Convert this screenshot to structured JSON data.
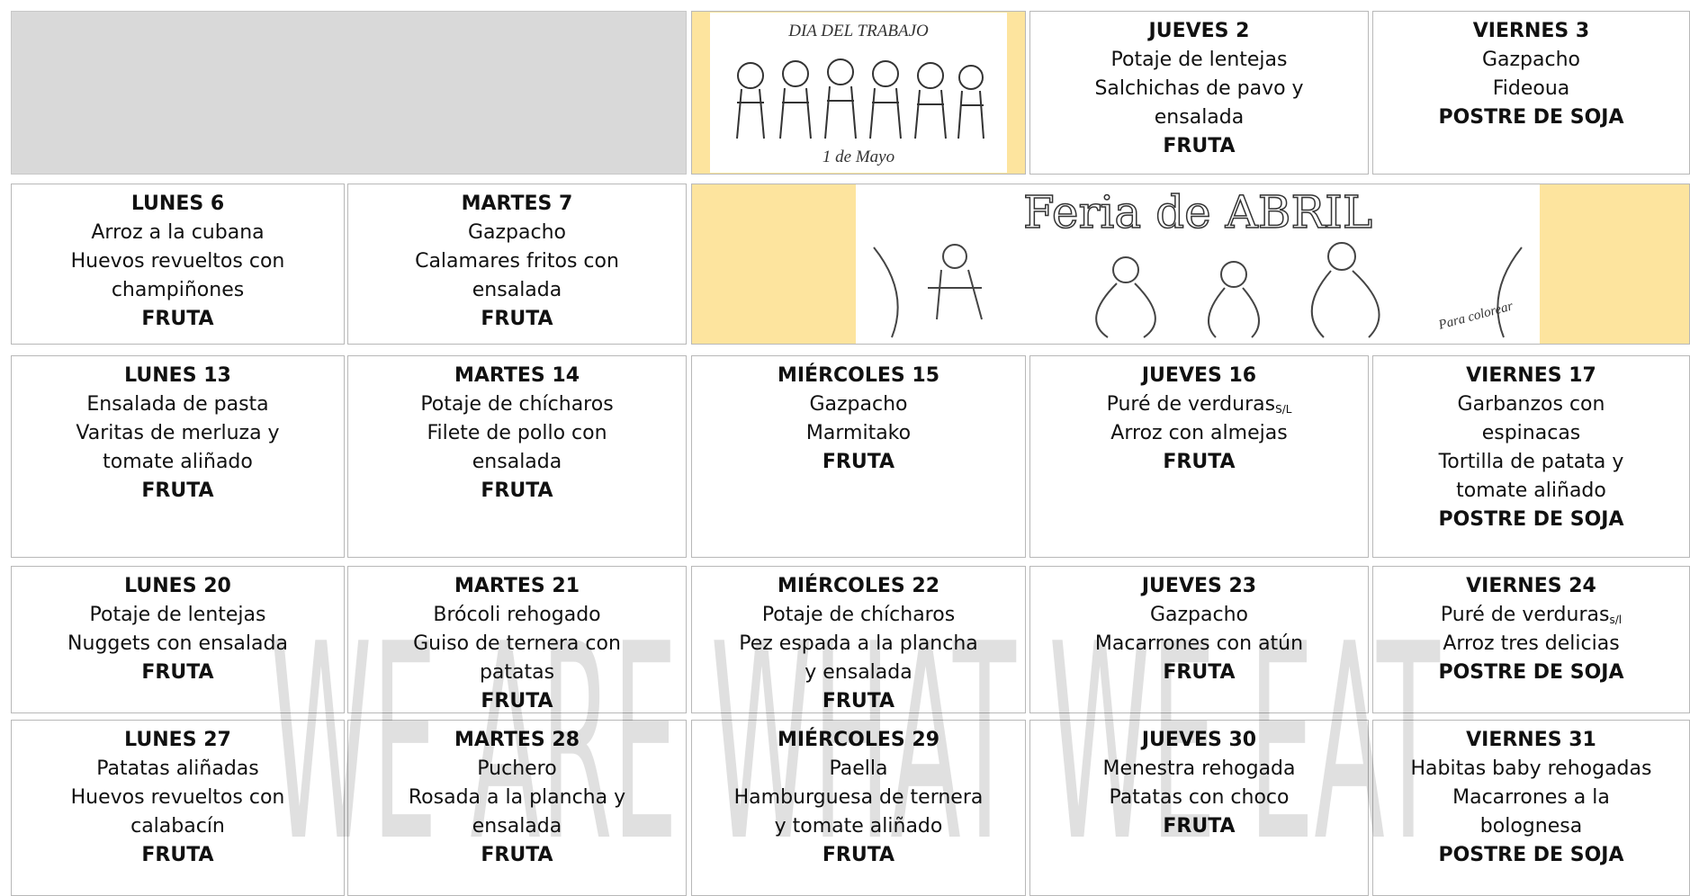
{
  "images": {
    "labour_day": {
      "title": "DIA DEL TRABAJO",
      "caption": "1 de Mayo"
    },
    "fair": {
      "title": "Feria de ABRIL",
      "caption": "Para colorear"
    }
  },
  "watermark": "WE ARE WHAT WE EAT",
  "rows": [
    [
      {
        "day": "JUEVES 2",
        "lines": [
          "Potaje de lentejas",
          "Salchichas de pavo y",
          "ensalada"
        ],
        "dessert": "FRUTA"
      },
      {
        "day": "VIERNES 3",
        "lines": [
          "Gazpacho",
          "Fideoua"
        ],
        "dessert": "POSTRE DE SOJA"
      }
    ],
    [
      {
        "day": "LUNES 6",
        "lines": [
          "Arroz a la cubana",
          "Huevos revueltos con",
          "champiñones"
        ],
        "dessert": "FRUTA"
      },
      {
        "day": "MARTES 7",
        "lines": [
          "Gazpacho",
          "Calamares fritos con",
          "ensalada"
        ],
        "dessert": "FRUTA"
      }
    ],
    [
      {
        "day": "LUNES 13",
        "lines": [
          "Ensalada de pasta",
          "Varitas de merluza y",
          "tomate aliñado"
        ],
        "dessert": "FRUTA"
      },
      {
        "day": "MARTES 14",
        "lines": [
          "Potaje de chícharos",
          "Filete de pollo con",
          "ensalada"
        ],
        "dessert": "FRUTA"
      },
      {
        "day": "MIÉRCOLES 15",
        "lines": [
          "Gazpacho",
          "Marmitako"
        ],
        "dessert": "FRUTA"
      },
      {
        "day": "JUEVES 16",
        "lines": [
          {
            "text": "Puré de verduras",
            "sub": "S/L"
          },
          "Arroz con almejas"
        ],
        "dessert": "FRUTA"
      },
      {
        "day": "VIERNES 17",
        "lines": [
          "Garbanzos con",
          "espinacas",
          "Tortilla de patata y",
          "tomate aliñado"
        ],
        "dessert": "POSTRE DE SOJA"
      }
    ],
    [
      {
        "day": "LUNES 20",
        "lines": [
          "Potaje de lentejas",
          "Nuggets con ensalada"
        ],
        "dessert": "FRUTA"
      },
      {
        "day": "MARTES 21",
        "lines": [
          "Brócoli rehogado",
          "Guiso de ternera con",
          "patatas"
        ],
        "dessert": "FRUTA"
      },
      {
        "day": "MIÉRCOLES 22",
        "lines": [
          "Potaje de chícharos",
          "Pez espada a la plancha",
          "y ensalada"
        ],
        "dessert": "FRUTA"
      },
      {
        "day": "JUEVES 23",
        "lines": [
          "Gazpacho",
          "Macarrones con atún"
        ],
        "dessert": "FRUTA"
      },
      {
        "day": "VIERNES 24",
        "lines": [
          {
            "text": "Puré de verduras",
            "sub": "s/l"
          },
          "Arroz tres delicias"
        ],
        "dessert": "POSTRE DE SOJA"
      }
    ],
    [
      {
        "day": "LUNES 27",
        "lines": [
          "Patatas aliñadas",
          "Huevos revueltos con",
          "calabacín"
        ],
        "dessert": "FRUTA"
      },
      {
        "day": "MARTES 28",
        "lines": [
          "Puchero",
          "Rosada a la plancha y",
          "ensalada"
        ],
        "dessert": "FRUTA"
      },
      {
        "day": "MIÉRCOLES 29",
        "lines": [
          "Paella",
          "Hamburguesa de ternera",
          "y tomate aliñado"
        ],
        "dessert": "FRUTA"
      },
      {
        "day": "JUEVES 30",
        "lines": [
          "Menestra rehogada",
          "Patatas con choco"
        ],
        "dessert": "FRUTA"
      },
      {
        "day": "VIERNES 31",
        "lines": [
          "Habitas baby rehogadas",
          "Macarrones a la",
          "bolognesa"
        ],
        "dessert": "POSTRE DE SOJA"
      }
    ]
  ]
}
